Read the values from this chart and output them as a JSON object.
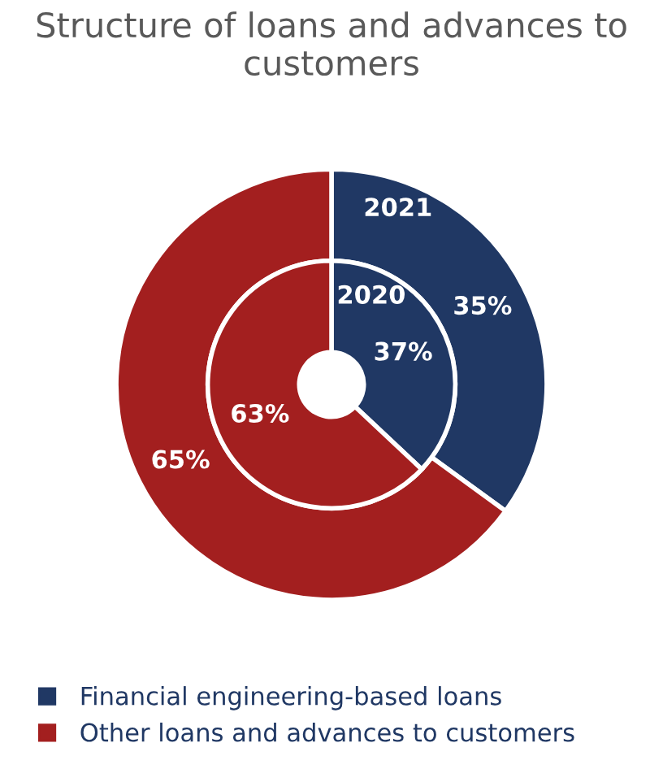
{
  "chart_data": {
    "type": "donut",
    "title": "Structure of loans and advances to customers",
    "categories": [
      "Financial engineering-based loans",
      "Other loans and advances to customers"
    ],
    "colors": [
      "#203864",
      "#a31f1f"
    ],
    "series": [
      {
        "name": "2021",
        "values": [
          35,
          65
        ],
        "value_labels": [
          "35%",
          "65%"
        ]
      },
      {
        "name": "2020",
        "values": [
          37,
          63
        ],
        "value_labels": [
          "37%",
          "63%"
        ]
      }
    ],
    "legend": "bottom"
  }
}
